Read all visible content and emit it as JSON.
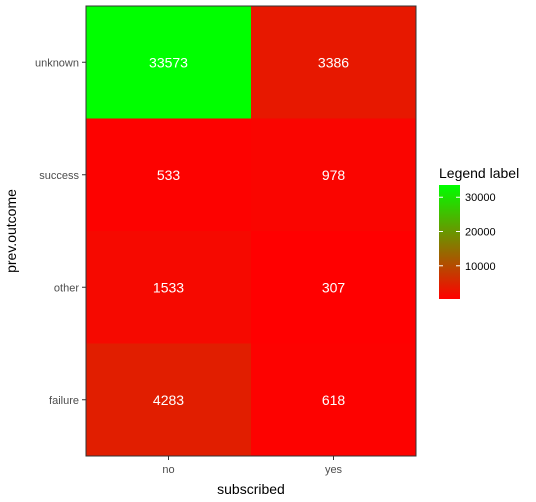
{
  "chart_data": {
    "type": "heatmap",
    "xlabel": "subscribed",
    "ylabel": "prev.outcome",
    "x_categories": [
      "no",
      "yes"
    ],
    "y_categories": [
      "unknown",
      "success",
      "other",
      "failure"
    ],
    "cells": [
      {
        "x": "no",
        "y": "unknown",
        "value": 33573
      },
      {
        "x": "yes",
        "y": "unknown",
        "value": 3386
      },
      {
        "x": "no",
        "y": "success",
        "value": 533
      },
      {
        "x": "yes",
        "y": "success",
        "value": 978
      },
      {
        "x": "no",
        "y": "other",
        "value": 1533
      },
      {
        "x": "yes",
        "y": "other",
        "value": 307
      },
      {
        "x": "no",
        "y": "failure",
        "value": 4283
      },
      {
        "x": "yes",
        "y": "failure",
        "value": 618
      }
    ],
    "color_scale": {
      "low": "#ff0000",
      "high": "#00ff00",
      "min": 307,
      "max": 33573
    },
    "legend": {
      "title": "Legend label",
      "ticks": [
        10000,
        20000,
        30000
      ],
      "tick_labels": [
        "10000",
        "20000",
        "30000"
      ],
      "placement": "right"
    },
    "grid": false
  }
}
